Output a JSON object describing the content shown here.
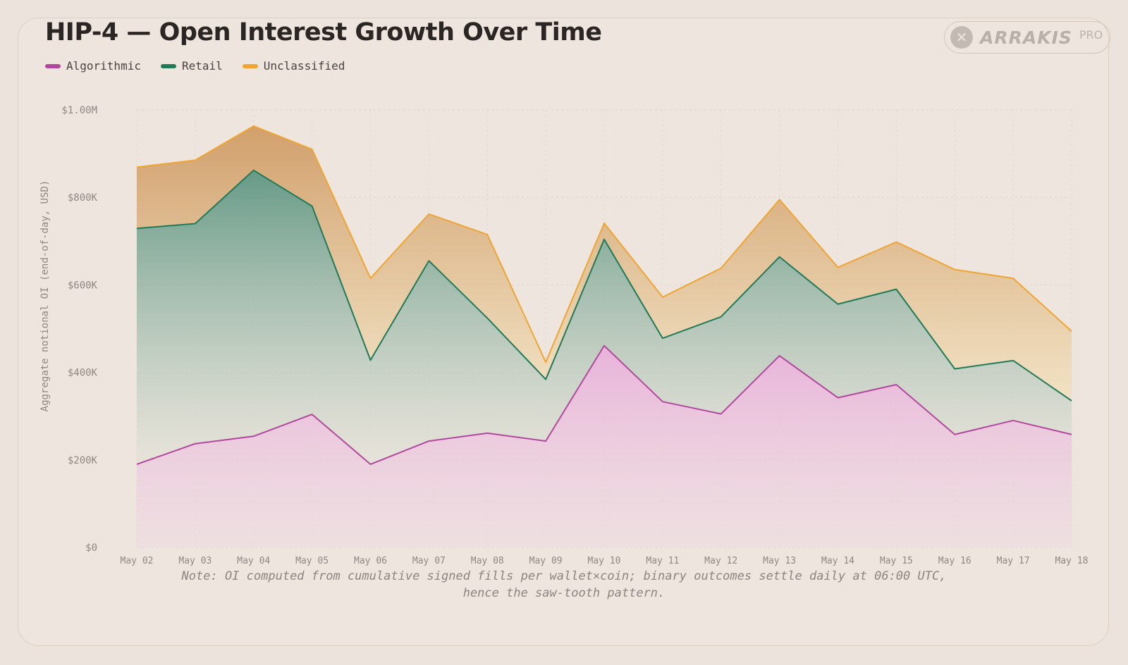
{
  "title": "HIP-4 — Open Interest Growth Over Time",
  "logo": {
    "mark": "✕",
    "word": "ARRAKIS",
    "badge": "PRO"
  },
  "note": {
    "line1": "Note: OI computed from cumulative signed fills per wallet×coin; binary outcomes settle daily at 06:00 UTC,",
    "line2": "hence the saw-tooth pattern."
  },
  "chart_data": {
    "type": "area",
    "stacked": true,
    "title": "HIP-4 — Open Interest Growth Over Time",
    "ylabel": "Aggregate notional OI (end-of-day, USD)",
    "xlabel": "",
    "ylim": [
      0,
      1000000
    ],
    "y_ticks": [
      0,
      200000,
      400000,
      600000,
      800000,
      1000000
    ],
    "y_tick_labels": [
      "$0",
      "$200K",
      "$400K",
      "$600K",
      "$800K",
      "$1.00M"
    ],
    "grid": true,
    "legend_position": "top-left",
    "categories": [
      "May 02",
      "May 03",
      "May 04",
      "May 05",
      "May 06",
      "May 07",
      "May 08",
      "May 09",
      "May 10",
      "May 11",
      "May 12",
      "May 13",
      "May 14",
      "May 15",
      "May 16",
      "May 17",
      "May 18"
    ],
    "series": [
      {
        "name": "Algorithmic",
        "color": "#b2489e",
        "fill": "#e9b7dc",
        "values": [
          190000,
          237000,
          254000,
          304000,
          190000,
          243000,
          261000,
          243000,
          461000,
          333000,
          305000,
          438000,
          342000,
          372000,
          258000,
          290000,
          258000
        ]
      },
      {
        "name": "Retail",
        "color": "#1f7a58",
        "fill": "#74a08b",
        "values": [
          539000,
          503000,
          608000,
          476000,
          238000,
          412000,
          263000,
          141000,
          243000,
          145000,
          222000,
          226000,
          214000,
          218000,
          150000,
          137000,
          77000
        ]
      },
      {
        "name": "Unclassified",
        "color": "#f0a531",
        "fill": "#d2a877",
        "values": [
          140000,
          145000,
          101000,
          130000,
          187000,
          107000,
          191000,
          39000,
          37000,
          94000,
          111000,
          131000,
          84000,
          108000,
          227000,
          188000,
          159000
        ]
      }
    ]
  }
}
